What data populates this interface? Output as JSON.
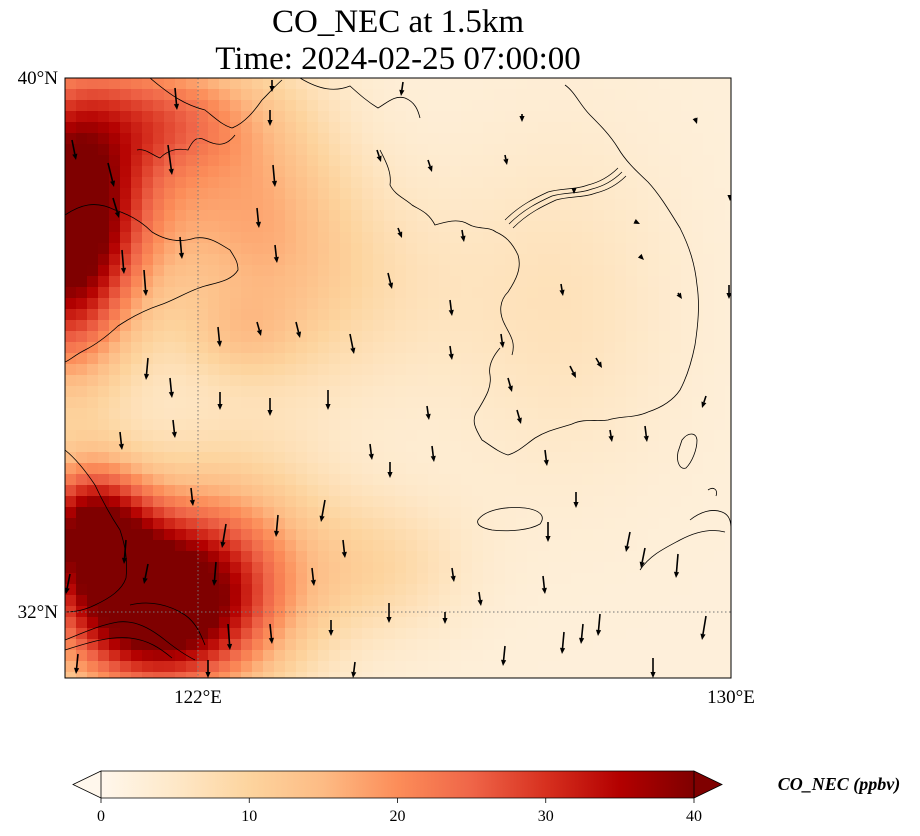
{
  "title": {
    "line1": "CO_NEC at 1.5km",
    "line2": "Time: 2024-02-25 07:00:00"
  },
  "map": {
    "variable": "CO_NEC",
    "height": "1.5km",
    "time": "2024-02-25 07:00:00",
    "lon_range": [
      120,
      130
    ],
    "lat_range": [
      31,
      40
    ],
    "lat_ticks": [
      {
        "value": 40,
        "label": "40°N"
      },
      {
        "value": 32,
        "label": "32°N"
      }
    ],
    "lon_ticks": [
      {
        "value": 122,
        "label": "122°E"
      },
      {
        "value": 130,
        "label": "130°E"
      }
    ],
    "gridlines": "dotted",
    "features": [
      "coastline",
      "borders",
      "Korean Peninsula",
      "Shandong Peninsula",
      "Jeju Island",
      "Yangtze River estuary"
    ],
    "wind_vectors": "north-to-south arrows"
  },
  "colorbar": {
    "label": "CO_NEC (ppbv)",
    "ticks": [
      "0",
      "10",
      "20",
      "30",
      "40"
    ],
    "min": 0,
    "max": 40,
    "colormap": "OrRd",
    "extend": "both",
    "colors": [
      "#fff7ec",
      "#fee8c8",
      "#fdd49e",
      "#fdbb84",
      "#fc8d59",
      "#ef6548",
      "#d7301f",
      "#b30000",
      "#7f0000"
    ]
  }
}
